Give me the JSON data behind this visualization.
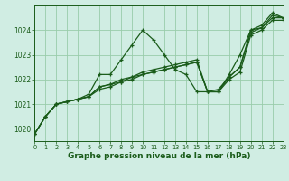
{
  "background_color": "#d0ede3",
  "grid_color": "#99ccaa",
  "line_color": "#1a5c1a",
  "title": "Graphe pression niveau de la mer (hPa)",
  "xlim": [
    0,
    23
  ],
  "ylim": [
    1019.5,
    1025.0
  ],
  "yticks": [
    1020,
    1021,
    1022,
    1023,
    1024
  ],
  "xticks": [
    0,
    1,
    2,
    3,
    4,
    5,
    6,
    7,
    8,
    9,
    10,
    11,
    12,
    13,
    14,
    15,
    16,
    17,
    18,
    19,
    20,
    21,
    22,
    23
  ],
  "series": [
    [
      1019.8,
      1020.5,
      1021.0,
      1021.1,
      1021.2,
      1021.4,
      1022.2,
      1022.2,
      1022.8,
      1023.4,
      1024.0,
      1023.6,
      1023.0,
      1022.4,
      1022.2,
      1021.5,
      1021.5,
      1021.5,
      1022.2,
      1023.0,
      1024.0,
      1024.2,
      1024.7,
      1024.5
    ],
    [
      1019.8,
      1020.5,
      1021.0,
      1021.1,
      1021.2,
      1021.3,
      1021.6,
      1021.7,
      1021.9,
      1022.0,
      1022.2,
      1022.3,
      1022.4,
      1022.5,
      1022.6,
      1022.7,
      1021.5,
      1021.5,
      1022.0,
      1022.3,
      1023.8,
      1024.0,
      1024.4,
      1024.4
    ],
    [
      1019.8,
      1020.5,
      1021.0,
      1021.1,
      1021.2,
      1021.3,
      1021.7,
      1021.8,
      1022.0,
      1022.1,
      1022.3,
      1022.4,
      1022.5,
      1022.6,
      1022.7,
      1022.8,
      1021.5,
      1021.6,
      1022.1,
      1022.5,
      1024.0,
      1024.1,
      1024.5,
      1024.5
    ],
    [
      1019.8,
      1020.5,
      1021.0,
      1021.1,
      1021.2,
      1021.3,
      1021.7,
      1021.8,
      1021.9,
      1022.1,
      1022.2,
      1022.3,
      1022.4,
      1022.5,
      1022.6,
      1022.7,
      1021.5,
      1021.5,
      1022.1,
      1022.5,
      1023.9,
      1024.1,
      1024.6,
      1024.5
    ]
  ]
}
